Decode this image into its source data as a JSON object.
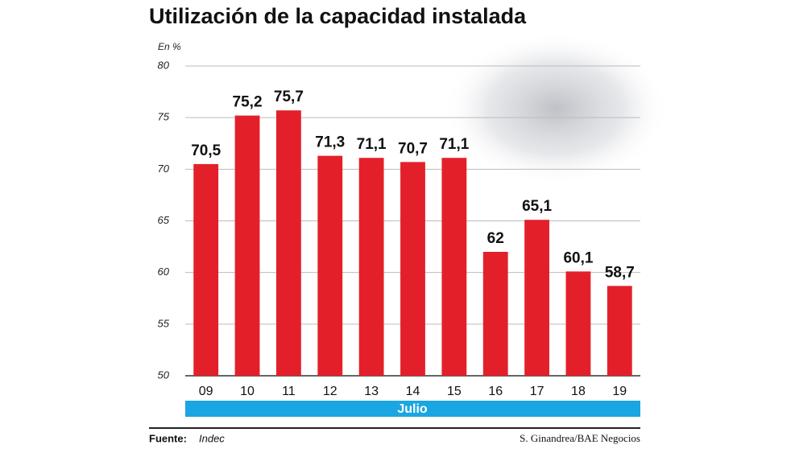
{
  "chart_data": {
    "type": "bar",
    "title": "Utilización de la capacidad instalada",
    "y_unit": "En %",
    "x_label": "Julio",
    "categories": [
      "09",
      "10",
      "11",
      "12",
      "13",
      "14",
      "15",
      "16",
      "17",
      "18",
      "19"
    ],
    "values": [
      70.5,
      75.2,
      75.7,
      71.3,
      71.1,
      70.7,
      71.1,
      62,
      65.1,
      60.1,
      58.7
    ],
    "value_labels": [
      "70,5",
      "75,2",
      "75,7",
      "71,3",
      "71,1",
      "70,7",
      "71,1",
      "62",
      "65,1",
      "60,1",
      "58,7"
    ],
    "color": "#e3202a",
    "ylim": [
      50,
      80
    ],
    "yticks": [
      50,
      55,
      60,
      65,
      70,
      75,
      80
    ],
    "grid": true,
    "source_label": "Fuente:",
    "source": "Indec",
    "credit": "S. Ginandrea/BAE Negocios"
  }
}
